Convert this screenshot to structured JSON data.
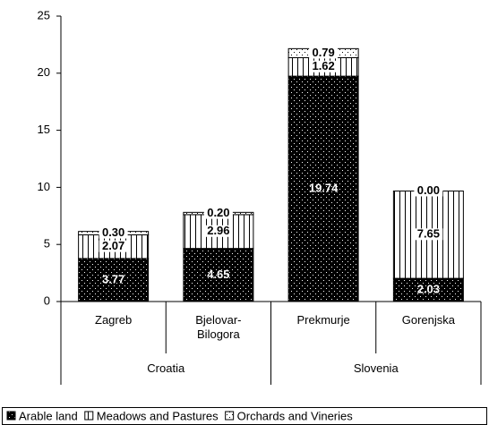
{
  "chart_data": {
    "type": "stacked-bar",
    "categories": [
      "Zagreb",
      "Bjelovar-Bilogora",
      "Prekmurje",
      "Gorenjska"
    ],
    "groups": [
      {
        "name": "Croatia",
        "count": 2
      },
      {
        "name": "Slovenia",
        "count": 2
      }
    ],
    "series": [
      {
        "name": "Arable land",
        "color": "#000000",
        "pattern": "dots",
        "values": [
          3.77,
          4.65,
          19.74,
          2.03
        ],
        "value_labels": [
          "3.77",
          "4.65",
          "19.74",
          "2.03"
        ]
      },
      {
        "name": "Meadows and Pastures",
        "color": "#ffffff",
        "pattern": "vertical-lines",
        "values": [
          2.07,
          2.96,
          1.62,
          7.65
        ],
        "value_labels": [
          "2.07",
          "2.96",
          "1.62",
          "7.65"
        ]
      },
      {
        "name": "Orchards and Vineries",
        "color": "#ffffff",
        "pattern": "dots",
        "values": [
          0.3,
          0.2,
          0.79,
          0.0
        ],
        "value_labels": [
          "0.30",
          "0.20",
          "0.79",
          "0.00"
        ]
      }
    ],
    "ylim": [
      0,
      25
    ],
    "yticks": [
      0,
      5,
      10,
      15,
      20,
      25
    ],
    "legend": "bottom"
  }
}
